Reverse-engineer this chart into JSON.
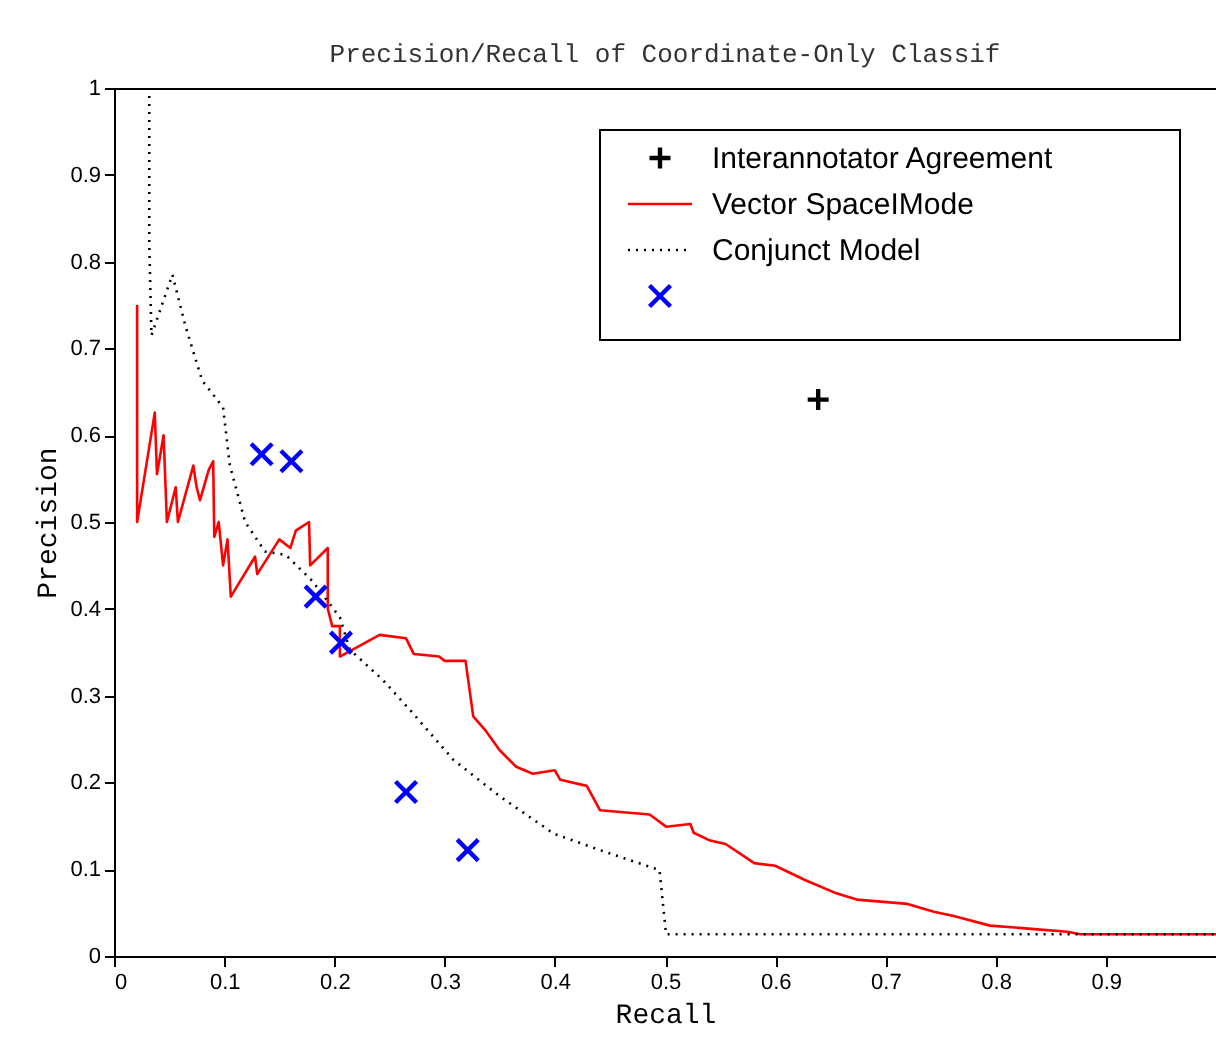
{
  "chart_data": {
    "type": "line",
    "title": "Precision/Recall of Coordinate-Only Classif",
    "xlabel": "Recall",
    "ylabel": "Precision",
    "xlim": [
      0,
      1
    ],
    "xticks": [
      0,
      0.1,
      0.2,
      0.3,
      0.4,
      0.5,
      0.6,
      0.7,
      0.8,
      0.9
    ],
    "ylim": [
      0,
      1
    ],
    "yticks": [
      0,
      0.1,
      0.2,
      0.3,
      0.4,
      0.5,
      0.6,
      0.7,
      0.8,
      0.9,
      1
    ],
    "grid": false,
    "legend": "top right",
    "series": [
      {
        "name": "Interannotator Agreement",
        "type": "scatter",
        "marker": "cross",
        "color": "#000000",
        "x": [
          0.639
        ],
        "values": [
          0.641
        ]
      },
      {
        "name": "Vector SpaceIMode",
        "line_style": "solid",
        "color": "#ff0000",
        "x": [
          0.021,
          0.021,
          0.037,
          0.039,
          0.045,
          0.048,
          0.056,
          0.058,
          0.072,
          0.075,
          0.078,
          0.086,
          0.09,
          0.091,
          0.095,
          0.099,
          0.103,
          0.106,
          0.128,
          0.13,
          0.15,
          0.16,
          0.165,
          0.177,
          0.178,
          0.194,
          0.194,
          0.198,
          0.205,
          0.205,
          0.241,
          0.265,
          0.272,
          0.295,
          0.3,
          0.319,
          0.326,
          0.337,
          0.35,
          0.365,
          0.38,
          0.4,
          0.405,
          0.429,
          0.441,
          0.486,
          0.501,
          0.523,
          0.526,
          0.541,
          0.555,
          0.581,
          0.6,
          0.628,
          0.654,
          0.674,
          0.72,
          0.744,
          0.762,
          0.795,
          0.835,
          0.865,
          0.877,
          1.0
        ],
        "values": [
          0.75,
          0.5,
          0.626,
          0.555,
          0.6,
          0.5,
          0.54,
          0.5,
          0.565,
          0.54,
          0.525,
          0.56,
          0.57,
          0.483,
          0.5,
          0.45,
          0.48,
          0.414,
          0.46,
          0.44,
          0.48,
          0.47,
          0.49,
          0.5,
          0.45,
          0.47,
          0.4,
          0.38,
          0.38,
          0.345,
          0.37,
          0.366,
          0.348,
          0.345,
          0.34,
          0.34,
          0.276,
          0.26,
          0.237,
          0.218,
          0.21,
          0.214,
          0.203,
          0.196,
          0.168,
          0.163,
          0.149,
          0.152,
          0.142,
          0.133,
          0.129,
          0.107,
          0.104,
          0.087,
          0.073,
          0.065,
          0.06,
          0.051,
          0.046,
          0.035,
          0.031,
          0.028,
          0.025,
          0.025
        ]
      },
      {
        "name": "Conjunct Model",
        "line_style": "dotted",
        "color": "#000000",
        "x": [
          0.032,
          0.032,
          0.034,
          0.053,
          0.065,
          0.08,
          0.099,
          0.105,
          0.119,
          0.137,
          0.156,
          0.18,
          0.205,
          0.214,
          0.244,
          0.271,
          0.308,
          0.35,
          0.399,
          0.441,
          0.495,
          0.501,
          1.0
        ],
        "values": [
          1.0,
          0.82,
          0.715,
          0.785,
          0.725,
          0.663,
          0.632,
          0.566,
          0.5,
          0.466,
          0.462,
          0.432,
          0.39,
          0.353,
          0.318,
          0.28,
          0.226,
          0.184,
          0.141,
          0.122,
          0.099,
          0.025,
          0.025
        ]
      },
      {
        "type": "scatter",
        "marker": "x",
        "color": "#0000ff",
        "x": [
          0.134,
          0.161,
          0.183,
          0.206,
          0.265,
          0.321
        ],
        "values": [
          0.578,
          0.57,
          0.414,
          0.361,
          0.189,
          0.122
        ]
      }
    ]
  }
}
